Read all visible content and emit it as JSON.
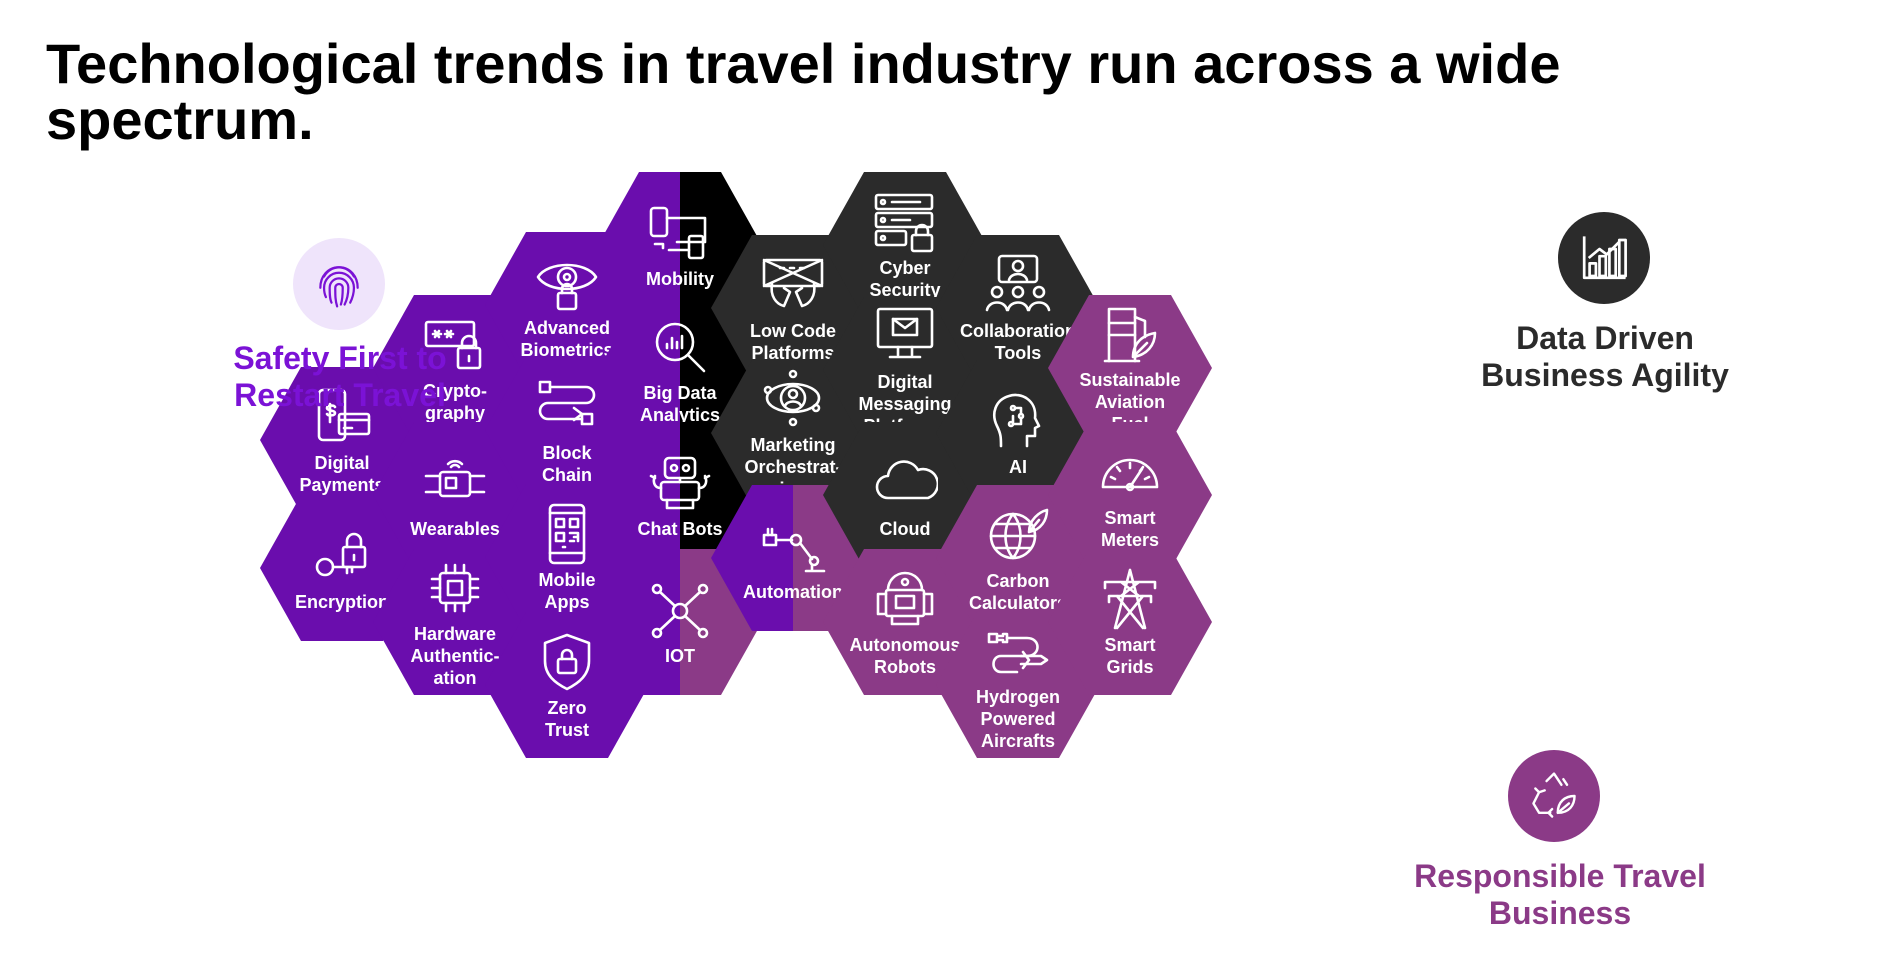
{
  "title": "Technological trends in travel industry run across a wide spectrum.",
  "colors": {
    "purple": "#6a0dad",
    "dark_purple": "#5b0a9e",
    "mauve": "#8b3a87",
    "dark_gray": "#2b2b2b",
    "black": "#000000",
    "safety_text": "#7b12d6",
    "responsible_text": "#8b3a87",
    "fingerprint_bg": "#efe4fb"
  },
  "categories": {
    "safety": {
      "label": "Safety First to\nRestart Travel",
      "icon": "fingerprint-icon"
    },
    "data": {
      "label": "Data Driven\nBusiness Agility",
      "icon": "bar-chart-icon"
    },
    "responsible": {
      "label": "Responsible Travel\nBusiness",
      "icon": "recycle-leaf-icon"
    }
  },
  "hexagons": [
    {
      "id": "digital-payments",
      "label": "Digital\nPayments",
      "icon": "phone-card",
      "style": "purple"
    },
    {
      "id": "encryption",
      "label": "Encryption",
      "icon": "lock-key",
      "style": "purple"
    },
    {
      "id": "cryptography",
      "label": "Crypto-\ngraphy",
      "icon": "password-lock",
      "style": "purple"
    },
    {
      "id": "wearables",
      "label": "Wearables",
      "icon": "smartwatch",
      "style": "purple"
    },
    {
      "id": "hardware-authentication",
      "label": "Hardware\nAuthentic-\nation",
      "icon": "chip",
      "style": "purple"
    },
    {
      "id": "advanced-biometrics",
      "label": "Advanced\nBiometrics",
      "icon": "eye-lock",
      "style": "purple"
    },
    {
      "id": "block-chain",
      "label": "Block\nChain",
      "icon": "chain-path",
      "style": "purple"
    },
    {
      "id": "mobile-apps",
      "label": "Mobile\nApps",
      "icon": "mobile-qr",
      "style": "purple"
    },
    {
      "id": "zero-trust",
      "label": "Zero\nTrust",
      "icon": "shield-lock",
      "style": "purple"
    },
    {
      "id": "mobility",
      "label": "Mobility",
      "icon": "devices",
      "style": "split-purple-black"
    },
    {
      "id": "big-data-analytics",
      "label": "Big Data\nAnalytics",
      "icon": "magnifier-chart",
      "style": "split-purple-black"
    },
    {
      "id": "chat-bots",
      "label": "Chat Bots",
      "icon": "robot",
      "style": "split-purple-black"
    },
    {
      "id": "iot",
      "label": "IOT",
      "icon": "network",
      "style": "split-purple-mauve"
    },
    {
      "id": "low-code-platforms",
      "label": "Low Code\nPlatforms",
      "icon": "keyboard-hands",
      "style": "dark"
    },
    {
      "id": "marketing-orchestration",
      "label": "Marketing\nOrchestrat-\nion",
      "icon": "orbit-user",
      "style": "dark"
    },
    {
      "id": "automation",
      "label": "Automation",
      "icon": "robot-arm",
      "style": "split-purple-mauve"
    },
    {
      "id": "cyber-security",
      "label": "Cyber\nSecurity",
      "icon": "server-lock",
      "style": "dark"
    },
    {
      "id": "digital-messaging-platforms",
      "label": "Digital\nMessaging\nPlatforms",
      "icon": "monitor-mail",
      "style": "dark"
    },
    {
      "id": "cloud",
      "label": "Cloud",
      "icon": "cloud",
      "style": "dark"
    },
    {
      "id": "autonomous-robots",
      "label": "Autonomous\nRobots",
      "icon": "droid",
      "style": "mauve"
    },
    {
      "id": "collaboration-tools",
      "label": "Collaboration\nTools",
      "icon": "team-screen",
      "style": "dark"
    },
    {
      "id": "ai",
      "label": "AI",
      "icon": "ai-head",
      "style": "dark"
    },
    {
      "id": "carbon-calculators",
      "label": "Carbon\nCalculators",
      "icon": "globe-leaf",
      "style": "mauve"
    },
    {
      "id": "hydrogen-powered-aircrafts",
      "label": "Hydrogen\nPowered\nAircrafts",
      "icon": "plug-plane",
      "style": "mauve"
    },
    {
      "id": "sustainable-aviation-fuel",
      "label": "Sustainable\nAviation\nFuel",
      "icon": "fuel-leaf",
      "style": "mauve"
    },
    {
      "id": "smart-meters",
      "label": "Smart\nMeters",
      "icon": "gauge",
      "style": "mauve"
    },
    {
      "id": "smart-grids",
      "label": "Smart\nGrids",
      "icon": "pylon",
      "style": "mauve"
    }
  ]
}
